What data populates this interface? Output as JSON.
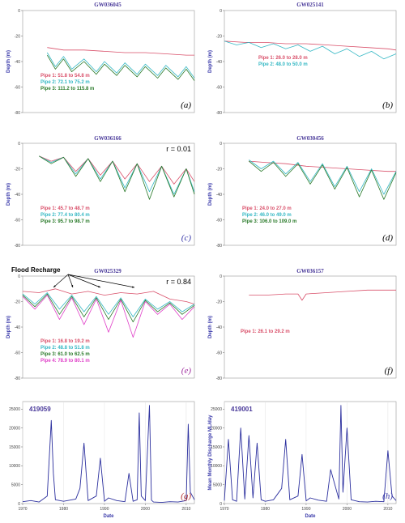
{
  "colors": {
    "pipe1": "#d9506a",
    "pipe2": "#35b8c4",
    "pipe3": "#2a7a2a",
    "pipe4": "#e040c8",
    "discharge": "#2b2f9e",
    "title": "#4a3a9a"
  },
  "chart_data": [
    {
      "id": "a",
      "type": "line",
      "title": "GW036045",
      "letter": "(a)",
      "r_label": "",
      "ylabel": "Depth (m)",
      "ylim": [
        -80,
        0
      ],
      "yticks": [
        0,
        -20,
        -40,
        -60,
        -80
      ],
      "xlim": [
        1970,
        2012
      ],
      "xticks": [],
      "legend": [
        {
          "text": "Pipe 1: 51.8 to 54.8 m",
          "color_key": "pipe1"
        },
        {
          "text": "Pipe 2: 72.1 to 75.2 m",
          "color_key": "pipe2"
        },
        {
          "text": "Pipe 3: 111.2 to 115.8 m",
          "color_key": "pipe3"
        }
      ],
      "series": [
        {
          "color_key": "pipe1",
          "x": [
            1976,
            1980,
            1985,
            1990,
            1995,
            2000,
            2005,
            2010,
            2012
          ],
          "y": [
            -29,
            -31,
            -31,
            -32,
            -33,
            -33,
            -34,
            -35,
            -35
          ]
        },
        {
          "color_key": "pipe2",
          "x": [
            1976,
            1978,
            1980,
            1982,
            1985,
            1988,
            1990,
            1993,
            1995,
            1998,
            2000,
            2003,
            2005,
            2008,
            2010,
            2012
          ],
          "y": [
            -33,
            -44,
            -36,
            -46,
            -38,
            -48,
            -40,
            -49,
            -41,
            -50,
            -42,
            -51,
            -43,
            -52,
            -44,
            -53
          ]
        },
        {
          "color_key": "pipe3",
          "x": [
            1976,
            1978,
            1980,
            1982,
            1985,
            1988,
            1990,
            1993,
            1995,
            1998,
            2000,
            2003,
            2005,
            2008,
            2010,
            2012
          ],
          "y": [
            -35,
            -46,
            -38,
            -48,
            -40,
            -50,
            -42,
            -51,
            -43,
            -52,
            -44,
            -53,
            -45,
            -54,
            -46,
            -55
          ]
        }
      ]
    },
    {
      "id": "b",
      "type": "line",
      "title": "GW025141",
      "letter": "(b)",
      "r_label": "",
      "ylabel": "Depth (m)",
      "ylim": [
        -80,
        0
      ],
      "yticks": [
        0,
        -20,
        -40,
        -60,
        -80
      ],
      "xlim": [
        1970,
        2012
      ],
      "xticks": [],
      "legend": [
        {
          "text": "Pipe 1: 26.0 to 28.0 m",
          "color_key": "pipe1"
        },
        {
          "text": "Pipe 2: 48.0 to 50.0 m",
          "color_key": "pipe2"
        }
      ],
      "series": [
        {
          "color_key": "pipe1",
          "x": [
            1970,
            1975,
            1980,
            1985,
            1990,
            1995,
            2000,
            2005,
            2010,
            2012
          ],
          "y": [
            -24,
            -25,
            -25,
            -26,
            -26,
            -27,
            -28,
            -29,
            -30,
            -31
          ]
        },
        {
          "color_key": "pipe2",
          "x": [
            1970,
            1973,
            1976,
            1979,
            1982,
            1985,
            1988,
            1991,
            1994,
            1997,
            2000,
            2003,
            2006,
            2009,
            2012
          ],
          "y": [
            -24,
            -27,
            -25,
            -29,
            -26,
            -30,
            -27,
            -32,
            -28,
            -34,
            -30,
            -36,
            -32,
            -38,
            -34
          ]
        }
      ]
    },
    {
      "id": "c",
      "type": "line",
      "title": "GW036166",
      "letter": "(c)",
      "r_label": "r = 0.01",
      "ylabel": "Depth (m)",
      "ylim": [
        -80,
        0
      ],
      "yticks": [
        0,
        -20,
        -40,
        -60,
        -80
      ],
      "xlim": [
        1970,
        2012
      ],
      "xticks": [],
      "legend": [
        {
          "text": "Pipe 1: 45.7 to 48.7 m",
          "color_key": "pipe1"
        },
        {
          "text": "Pipe 2: 77.4 to 80.4 m",
          "color_key": "pipe2"
        },
        {
          "text": "Pipe 3: 95.7 to 98.7 m",
          "color_key": "pipe3"
        }
      ],
      "series": [
        {
          "color_key": "pipe1",
          "x": [
            1974,
            1977,
            1980,
            1983,
            1986,
            1989,
            1992,
            1995,
            1998,
            2001,
            2004,
            2007,
            2010,
            2012
          ],
          "y": [
            -10,
            -14,
            -11,
            -22,
            -12,
            -25,
            -14,
            -28,
            -16,
            -30,
            -18,
            -32,
            -20,
            -30
          ]
        },
        {
          "color_key": "pipe2",
          "x": [
            1974,
            1977,
            1980,
            1983,
            1986,
            1989,
            1992,
            1995,
            1998,
            2001,
            2004,
            2007,
            2010,
            2012
          ],
          "y": [
            -10,
            -15,
            -11,
            -24,
            -12,
            -28,
            -14,
            -35,
            -16,
            -38,
            -18,
            -40,
            -20,
            -38
          ]
        },
        {
          "color_key": "pipe3",
          "x": [
            1974,
            1977,
            1980,
            1983,
            1986,
            1989,
            1992,
            1995,
            1998,
            2001,
            2004,
            2007,
            2010,
            2012
          ],
          "y": [
            -10,
            -16,
            -11,
            -26,
            -12,
            -30,
            -14,
            -38,
            -16,
            -44,
            -18,
            -42,
            -20,
            -40
          ]
        }
      ]
    },
    {
      "id": "d",
      "type": "line",
      "title": "GW030456",
      "letter": "(d)",
      "r_label": "",
      "ylabel": "Depth (m)",
      "ylim": [
        -80,
        0
      ],
      "yticks": [
        0,
        -20,
        -40,
        -60,
        -80
      ],
      "xlim": [
        1970,
        2012
      ],
      "xticks": [],
      "legend": [
        {
          "text": "Pipe 1: 24.0 to 27.0 m",
          "color_key": "pipe1"
        },
        {
          "text": "Pipe 2: 46.0 to 49.0 m",
          "color_key": "pipe2"
        },
        {
          "text": "Pipe 3: 106.0 to 109.0 m",
          "color_key": "pipe3"
        }
      ],
      "series": [
        {
          "color_key": "pipe1",
          "x": [
            1976,
            1980,
            1985,
            1990,
            1995,
            2000,
            2005,
            2010,
            2012
          ],
          "y": [
            -14,
            -15,
            -16,
            -18,
            -19,
            -20,
            -21,
            -22,
            -22
          ]
        },
        {
          "color_key": "pipe2",
          "x": [
            1976,
            1979,
            1982,
            1985,
            1988,
            1991,
            1994,
            1997,
            2000,
            2003,
            2006,
            2009,
            2012
          ],
          "y": [
            -13,
            -20,
            -14,
            -24,
            -15,
            -30,
            -16,
            -34,
            -18,
            -38,
            -20,
            -40,
            -22
          ]
        },
        {
          "color_key": "pipe3",
          "x": [
            1976,
            1979,
            1982,
            1985,
            1988,
            1991,
            1994,
            1997,
            2000,
            2003,
            2006,
            2009,
            2012
          ],
          "y": [
            -14,
            -22,
            -15,
            -26,
            -16,
            -32,
            -17,
            -36,
            -19,
            -42,
            -21,
            -44,
            -23
          ]
        }
      ]
    },
    {
      "id": "e",
      "type": "line",
      "title": "GW025329",
      "letter": "(e)",
      "r_label": "r = 0.84",
      "annotation": "Flood Recharge",
      "ylabel": "Depth (m)",
      "ylim": [
        -80,
        0
      ],
      "yticks": [
        0,
        -20,
        -40,
        -60,
        -80
      ],
      "xlim": [
        1970,
        2012
      ],
      "xticks": [],
      "legend": [
        {
          "text": "Pipe 1: 16.8 to 19.2 m",
          "color_key": "pipe1"
        },
        {
          "text": "Pipe 2: 48.8 to 51.8 m",
          "color_key": "pipe2"
        },
        {
          "text": "Pipe 3: 61.0 to 62.5 m",
          "color_key": "pipe3"
        },
        {
          "text": "Pipe 4: 78.9 to 80.1 m",
          "color_key": "pipe4"
        }
      ],
      "series": [
        {
          "color_key": "pipe1",
          "x": [
            1970,
            1974,
            1978,
            1982,
            1986,
            1990,
            1994,
            1998,
            2002,
            2006,
            2010,
            2012
          ],
          "y": [
            -12,
            -13,
            -10,
            -14,
            -12,
            -15,
            -13,
            -14,
            -12,
            -18,
            -20,
            -22
          ]
        },
        {
          "color_key": "pipe2",
          "x": [
            1970,
            1973,
            1976,
            1979,
            1982,
            1985,
            1988,
            1991,
            1994,
            1997,
            2000,
            2003,
            2006,
            2009,
            2012
          ],
          "y": [
            -14,
            -22,
            -13,
            -26,
            -15,
            -28,
            -16,
            -30,
            -17,
            -32,
            -18,
            -26,
            -20,
            -28,
            -22
          ]
        },
        {
          "color_key": "pipe3",
          "x": [
            1970,
            1973,
            1976,
            1979,
            1982,
            1985,
            1988,
            1991,
            1994,
            1997,
            2000,
            2003,
            2006,
            2009,
            2012
          ],
          "y": [
            -15,
            -24,
            -14,
            -30,
            -16,
            -32,
            -17,
            -34,
            -18,
            -36,
            -19,
            -28,
            -21,
            -30,
            -23
          ]
        },
        {
          "color_key": "pipe4",
          "x": [
            1970,
            1973,
            1976,
            1979,
            1982,
            1985,
            1988,
            1991,
            1994,
            1997,
            2000,
            2003,
            2006,
            2009,
            2012
          ],
          "y": [
            -16,
            -26,
            -15,
            -34,
            -17,
            -38,
            -18,
            -44,
            -19,
            -48,
            -20,
            -30,
            -22,
            -34,
            -24
          ]
        }
      ]
    },
    {
      "id": "f",
      "type": "line",
      "title": "GW036157",
      "letter": "(f)",
      "r_label": "",
      "ylabel": "Depth (m)",
      "ylim": [
        -80,
        0
      ],
      "yticks": [
        0,
        -20,
        -40,
        -60,
        -80
      ],
      "xlim": [
        1970,
        2012
      ],
      "xticks": [],
      "legend": [
        {
          "text": "Pipe 1: 26.1 to 29.2 m",
          "color_key": "pipe1"
        }
      ],
      "series": [
        {
          "color_key": "pipe1",
          "x": [
            1976,
            1980,
            1985,
            1988,
            1989,
            1990,
            1995,
            2000,
            2005,
            2010,
            2012
          ],
          "y": [
            -15,
            -15,
            -14,
            -14,
            -19,
            -14,
            -13,
            -12,
            -11,
            -11,
            -11
          ]
        }
      ]
    },
    {
      "id": "g",
      "type": "line",
      "title": "",
      "gauge": "419059",
      "letter": "(g)",
      "r_label": "",
      "ylabel": "",
      "xlabel": "Date",
      "ylim": [
        0,
        27000
      ],
      "yticks": [
        0,
        5000,
        10000,
        15000,
        20000,
        25000
      ],
      "xlim": [
        1970,
        2012
      ],
      "xticks": [
        1970,
        1980,
        1990,
        2000,
        2010
      ],
      "legend": [],
      "series": [
        {
          "color_key": "discharge",
          "x": [
            1970,
            1972,
            1974,
            1976,
            1977,
            1977.5,
            1978,
            1980,
            1983,
            1984,
            1985,
            1986,
            1988,
            1989,
            1990,
            1991,
            1993,
            1995,
            1996,
            1997,
            1998,
            1998.5,
            1999,
            2000,
            2001,
            2001.5,
            2002,
            2004,
            2006,
            2008,
            2010,
            2010.5,
            2011,
            2012
          ],
          "y": [
            500,
            800,
            400,
            2000,
            22000,
            8000,
            1000,
            600,
            1200,
            4000,
            16000,
            800,
            2000,
            12000,
            600,
            1500,
            800,
            500,
            8000,
            600,
            1000,
            24000,
            2000,
            800,
            26000,
            900,
            400,
            300,
            500,
            400,
            800,
            21000,
            3000,
            1000
          ]
        }
      ]
    },
    {
      "id": "h",
      "type": "line",
      "title": "",
      "gauge": "419001",
      "letter": "(h)",
      "r_label": "",
      "ylabel": "Mean Monthly Discharge ML/day",
      "xlabel": "Date",
      "ylim": [
        0,
        27000
      ],
      "yticks": [
        0,
        5000,
        10000,
        15000,
        20000,
        25000
      ],
      "xlim": [
        1970,
        2012
      ],
      "xticks": [
        1970,
        1980,
        1990,
        2000,
        2010
      ],
      "legend": [],
      "series": [
        {
          "color_key": "discharge",
          "x": [
            1970,
            1971,
            1972,
            1973,
            1974,
            1975,
            1976,
            1977,
            1978,
            1979,
            1980,
            1982,
            1984,
            1985,
            1986,
            1988,
            1989,
            1990,
            1991,
            1993,
            1995,
            1996,
            1998,
            1998.5,
            1999,
            2000,
            2001,
            2003,
            2005,
            2007,
            2009,
            2010,
            2011,
            2012
          ],
          "y": [
            800,
            17000,
            1000,
            600,
            20000,
            1200,
            18000,
            1500,
            16000,
            1000,
            600,
            1000,
            4000,
            17000,
            1000,
            2000,
            13000,
            700,
            1500,
            900,
            600,
            9000,
            1200,
            26000,
            3000,
            20000,
            1000,
            500,
            400,
            600,
            500,
            14000,
            2000,
            800
          ]
        }
      ]
    }
  ]
}
